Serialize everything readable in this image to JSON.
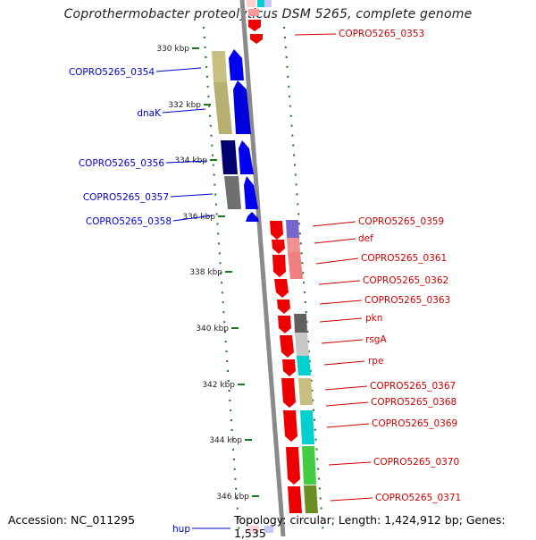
{
  "title": "Coprothermobacter proteolyticus DSM 5265, complete genome",
  "footer": {
    "accession": "Accession: NC_011295",
    "summary": "Topology: circular; Length: 1,424,912 bp; Genes: 1,535"
  },
  "scale": {
    "ticks": [
      {
        "label": "330 kbp"
      },
      {
        "label": "332 kbp"
      },
      {
        "label": "334 kbp"
      },
      {
        "label": "336 kbp"
      },
      {
        "label": "338 kbp"
      },
      {
        "label": "340 kbp"
      },
      {
        "label": "342 kbp"
      },
      {
        "label": "344 kbp"
      },
      {
        "label": "346 kbp"
      }
    ]
  },
  "colors": {
    "minus_strand_label": "#0000cc",
    "plus_strand_label": "#cc0000",
    "scale_dots": "#1a7a1a",
    "backbone": "#888888"
  },
  "labels_left": [
    {
      "text": "COPRO5265_0354"
    },
    {
      "text": "dnaK"
    },
    {
      "text": "COPRO5265_0356"
    },
    {
      "text": "COPRO5265_0357"
    },
    {
      "text": "COPRO5265_0358"
    },
    {
      "text": "hup"
    }
  ],
  "labels_right": [
    {
      "text": "COPRO5265_0353"
    },
    {
      "text": "COPRO5265_0359"
    },
    {
      "text": "def"
    },
    {
      "text": "COPRO5265_0361"
    },
    {
      "text": "COPRO5265_0362"
    },
    {
      "text": "COPRO5265_0363"
    },
    {
      "text": "pkn"
    },
    {
      "text": "rsgA"
    },
    {
      "text": "rpe"
    },
    {
      "text": "COPRO5265_0367"
    },
    {
      "text": "COPRO5265_0368"
    },
    {
      "text": "COPRO5265_0369"
    },
    {
      "text": "COPRO5265_0370"
    },
    {
      "text": "COPRO5265_0371"
    }
  ]
}
